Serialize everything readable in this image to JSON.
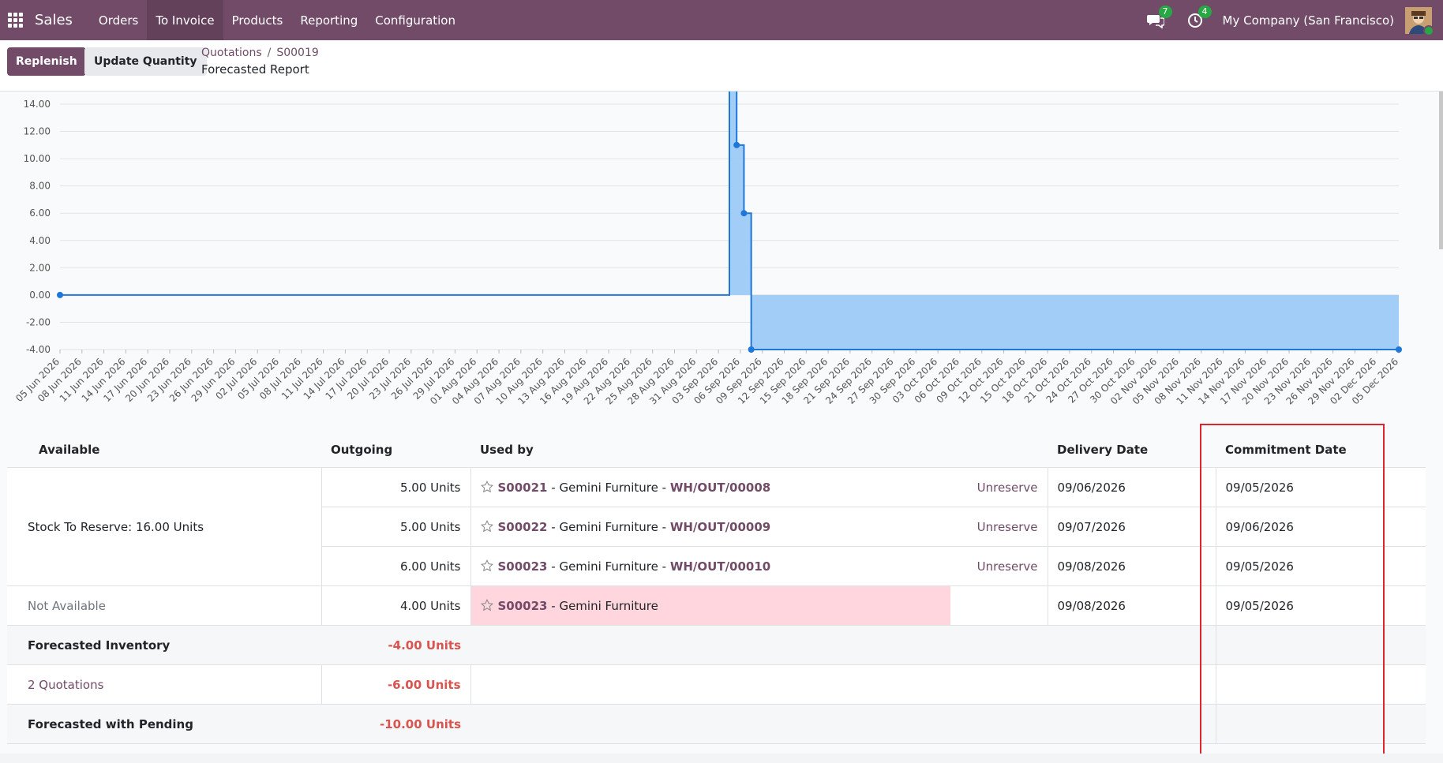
{
  "nav": {
    "brand": "Sales",
    "items": [
      {
        "label": "Orders",
        "active": false
      },
      {
        "label": "To Invoice",
        "active": true
      },
      {
        "label": "Products",
        "active": false
      },
      {
        "label": "Reporting",
        "active": false
      },
      {
        "label": "Configuration",
        "active": false
      }
    ],
    "messages_count": "7",
    "activities_count": "4",
    "company": "My Company (San Francisco)",
    "accent_color": "#714b67"
  },
  "control": {
    "replenish_label": "Replenish",
    "update_quantity_label": "Update Quantity",
    "breadcrumb_root": "Quotations",
    "breadcrumb_sep": "/",
    "breadcrumb_record": "S00019",
    "subtitle": "Forecasted Report"
  },
  "chart_data": {
    "type": "area",
    "title": "",
    "xlabel": "",
    "ylabel": "",
    "ylim": [
      -4,
      14
    ],
    "y_ticks": [
      "14.00",
      "12.00",
      "10.00",
      "8.00",
      "6.00",
      "4.00",
      "2.00",
      "0.00",
      "-2.00",
      "-4.00"
    ],
    "x_ticks": [
      "05 Jun 2026",
      "08 Jun 2026",
      "11 Jun 2026",
      "14 Jun 2026",
      "17 Jun 2026",
      "20 Jun 2026",
      "23 Jun 2026",
      "26 Jun 2026",
      "29 Jun 2026",
      "02 Jul 2026",
      "05 Jul 2026",
      "08 Jul 2026",
      "11 Jul 2026",
      "14 Jul 2026",
      "17 Jul 2026",
      "20 Jul 2026",
      "23 Jul 2026",
      "26 Jul 2026",
      "29 Jul 2026",
      "01 Aug 2026",
      "04 Aug 2026",
      "07 Aug 2026",
      "10 Aug 2026",
      "13 Aug 2026",
      "16 Aug 2026",
      "19 Aug 2026",
      "22 Aug 2026",
      "25 Aug 2026",
      "28 Aug 2026",
      "31 Aug 2026",
      "03 Sep 2026",
      "06 Sep 2026",
      "09 Sep 2026",
      "12 Sep 2026",
      "15 Sep 2026",
      "18 Sep 2026",
      "21 Sep 2026",
      "24 Sep 2026",
      "27 Sep 2026",
      "30 Sep 2026",
      "03 Oct 2026",
      "06 Oct 2026",
      "09 Oct 2026",
      "12 Oct 2026",
      "15 Oct 2026",
      "18 Oct 2026",
      "21 Oct 2026",
      "24 Oct 2026",
      "27 Oct 2026",
      "30 Oct 2026",
      "02 Nov 2026",
      "05 Nov 2026",
      "08 Nov 2026",
      "11 Nov 2026",
      "14 Nov 2026",
      "17 Nov 2026",
      "20 Nov 2026",
      "23 Nov 2026",
      "26 Nov 2026",
      "29 Nov 2026",
      "02 Dec 2026",
      "05 Dec 2026"
    ],
    "series": [
      {
        "color": "#1f77d8",
        "fill": "#9ccaf5",
        "step": true,
        "points": [
          {
            "x": "2026-06-05",
            "y": 0
          },
          {
            "x": "2026-09-05",
            "y": 16
          },
          {
            "x": "2026-09-06",
            "y": 11
          },
          {
            "x": "2026-09-07",
            "y": 6
          },
          {
            "x": "2026-09-08",
            "y": -4
          },
          {
            "x": "2026-12-06",
            "y": -4
          }
        ]
      }
    ],
    "grid": true,
    "legend": "none"
  },
  "table": {
    "headers": {
      "available": "Available",
      "outgoing": "Outgoing",
      "used_by": "Used by",
      "delivery_date": "Delivery Date",
      "commitment_date": "Commitment Date"
    },
    "stock_to_reserve": "Stock To Reserve: 16.00 Units",
    "rows": [
      {
        "outgoing": "5.00 Units",
        "order": "S00021",
        "partner": " - Gemini Furniture - ",
        "picking": "WH/OUT/00008",
        "action": "Unreserve",
        "delivery": "09/06/2026",
        "commitment": "09/05/2026"
      },
      {
        "outgoing": "5.00 Units",
        "order": "S00022",
        "partner": " - Gemini Furniture - ",
        "picking": "WH/OUT/00009",
        "action": "Unreserve",
        "delivery": "09/07/2026",
        "commitment": "09/06/2026"
      },
      {
        "outgoing": "6.00 Units",
        "order": "S00023",
        "partner": " - Gemini Furniture - ",
        "picking": "WH/OUT/00010",
        "action": "Unreserve",
        "delivery": "09/08/2026",
        "commitment": "09/05/2026"
      }
    ],
    "not_available": {
      "label": "Not Available",
      "outgoing": "4.00 Units",
      "order": "S00023",
      "partner": " - Gemini Furniture",
      "delivery": "09/08/2026",
      "commitment": "09/05/2026"
    },
    "forecasted_inventory": {
      "label": "Forecasted Inventory",
      "value": "-4.00 Units"
    },
    "quotations": {
      "label": "2 Quotations",
      "value": "-6.00 Units"
    },
    "forecasted_pending": {
      "label": "Forecasted with Pending",
      "value": "-10.00 Units"
    }
  }
}
